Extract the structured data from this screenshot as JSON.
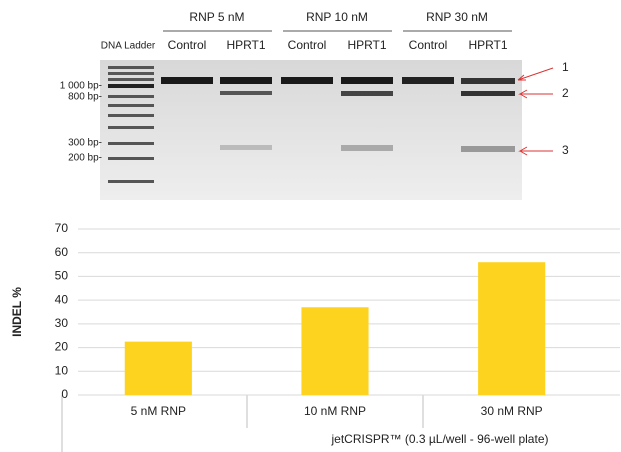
{
  "gel": {
    "headers": [
      "RNP 5 nM",
      "RNP 10 nM",
      "RNP 30 nM"
    ],
    "lanes": [
      "Control",
      "HPRT1",
      "Control",
      "HPRT1",
      "Control",
      "HPRT1"
    ],
    "ladder": "DNA Ladder",
    "sizes": [
      "1 000 bp-",
      "800 bp-",
      "300 bp-",
      "200 bp-"
    ],
    "band_labels": [
      "1",
      "2",
      "3"
    ]
  },
  "chart_data": {
    "type": "bar",
    "categories": [
      "5 nM RNP",
      "10 nM RNP",
      "30 nM RNP"
    ],
    "values": [
      22.5,
      37,
      56
    ],
    "color": "#fdd31f",
    "ylabel": "INDEL %",
    "xlabel": "jetCRISPR™ (0.3 µL/well - 96-well plate)",
    "ylim": [
      0,
      70
    ],
    "yticks": [
      0,
      10,
      20,
      30,
      40,
      50,
      60,
      70
    ],
    "grid": true
  }
}
